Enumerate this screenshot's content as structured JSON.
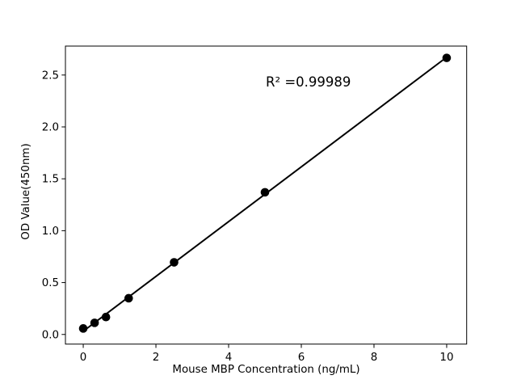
{
  "chart_data": {
    "type": "scatter",
    "title": "",
    "xlabel": "Mouse MBP Concentration (ng/mL)",
    "ylabel": "OD Value(450nm)",
    "annotation": "R² =0.99989",
    "x": [
      0,
      0.3125,
      0.625,
      1.25,
      2.5,
      5,
      10
    ],
    "y": [
      0.058,
      0.112,
      0.168,
      0.349,
      0.695,
      1.37,
      2.665
    ],
    "fit_line": {
      "type": "linear",
      "x_start": 0,
      "x_end": 10
    },
    "xlim": [
      -0.49,
      10.55
    ],
    "ylim": [
      -0.093,
      2.779
    ],
    "xticks": {
      "values": [
        0,
        2,
        4,
        6,
        8,
        10
      ],
      "labels": [
        "0",
        "2",
        "4",
        "6",
        "8",
        "10"
      ]
    },
    "yticks": {
      "values": [
        0,
        0.5,
        1.0,
        1.5,
        2.0,
        2.5
      ],
      "labels": [
        "0.0",
        "0.5",
        "1.0",
        "1.5",
        "2.0",
        "2.5"
      ]
    },
    "grid": false,
    "legend": "none",
    "colors": {
      "marker": "#000000",
      "line": "#000000",
      "spine": "#000000",
      "text": "#000000",
      "background": "#ffffff"
    }
  }
}
